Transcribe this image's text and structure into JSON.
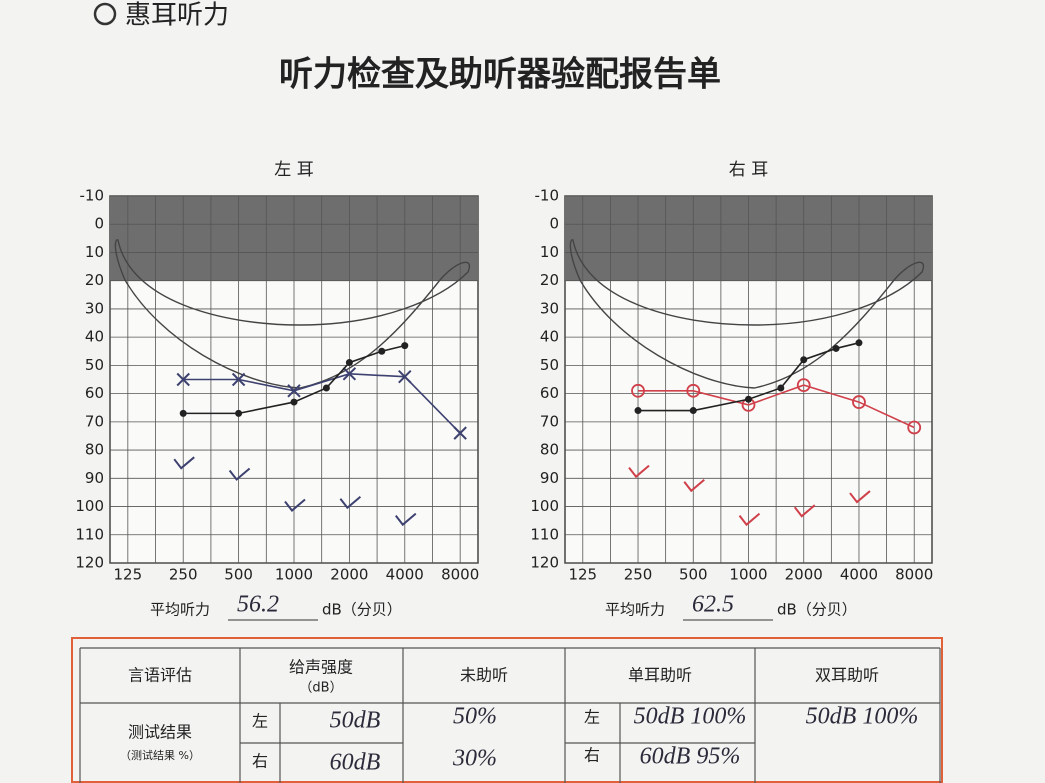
{
  "header": {
    "logo": "惠耳听力",
    "title": "听力检查及助听器验配报告单"
  },
  "chart_data": [
    {
      "type": "line",
      "title": "左 耳",
      "xscale": "log",
      "xlim": [
        100,
        10000
      ],
      "xticks": [
        125,
        250,
        500,
        1000,
        2000,
        4000,
        8000
      ],
      "ylim": [
        -10,
        120
      ],
      "y_inverted": true,
      "yticks": [
        -10,
        0,
        10,
        20,
        30,
        40,
        50,
        60,
        70,
        80,
        90,
        100,
        110,
        120
      ],
      "grid": true,
      "shade": [
        -10,
        20
      ],
      "series": [
        {
          "marker": "x",
          "color": "#3d4170",
          "connected": true,
          "x": [
            250,
            500,
            1000,
            2000,
            4000,
            8000
          ],
          "values": [
            55,
            55,
            59,
            53,
            54,
            74
          ]
        },
        {
          "marker": "v",
          "color": "#3d4170",
          "connected": false,
          "x": [
            250,
            500,
            1000,
            2000,
            4000
          ],
          "values": [
            85,
            89,
            100,
            99,
            105
          ]
        },
        {
          "marker": "dot",
          "color": "#222222",
          "connected": true,
          "x": [
            250,
            500,
            1000,
            1500,
            2000,
            3000,
            4000
          ],
          "values": [
            67,
            67,
            63,
            58,
            49,
            45,
            43
          ]
        }
      ],
      "average": {
        "label": "平均听力",
        "value": 56.2,
        "unit": "dB（分贝）"
      }
    },
    {
      "type": "line",
      "title": "右 耳",
      "xscale": "log",
      "xlim": [
        100,
        10000
      ],
      "xticks": [
        125,
        250,
        500,
        1000,
        2000,
        4000,
        8000
      ],
      "ylim": [
        -10,
        120
      ],
      "y_inverted": true,
      "yticks": [
        -10,
        0,
        10,
        20,
        30,
        40,
        50,
        60,
        70,
        80,
        90,
        100,
        110,
        120
      ],
      "grid": true,
      "shade": [
        -10,
        20
      ],
      "series": [
        {
          "marker": "o",
          "color": "#d0404a",
          "connected": true,
          "x": [
            250,
            500,
            1000,
            2000,
            4000,
            8000
          ],
          "values": [
            59,
            59,
            64,
            57,
            63,
            72
          ]
        },
        {
          "marker": "v",
          "color": "#d0404a",
          "connected": false,
          "x": [
            250,
            500,
            1000,
            2000,
            4000
          ],
          "values": [
            88,
            93,
            105,
            102,
            97
          ]
        },
        {
          "marker": "dot",
          "color": "#222222",
          "connected": true,
          "x": [
            250,
            500,
            1000,
            1500,
            2000,
            3000,
            4000
          ],
          "values": [
            66,
            66,
            62,
            58,
            48,
            44,
            42
          ]
        }
      ],
      "average": {
        "label": "平均听力",
        "value": 62.5,
        "unit": "dB（分贝）"
      }
    }
  ],
  "table": {
    "corner": "言语评估",
    "result_label": "测试结果",
    "result_sub": "（测试结果 %）",
    "intensity": "给声强度",
    "intensity_unit": "（dB）",
    "unaided": "未助听",
    "mono": "单耳助听",
    "binaural": "双耳助听",
    "rows": [
      {
        "side": "左",
        "intensity": "50dB",
        "unaided": "50%",
        "mono_side": "左",
        "mono": "50dB 100%",
        "binaural": "50dB 100%"
      },
      {
        "side": "右",
        "intensity": "60dB",
        "unaided": "30%",
        "mono_side": "右",
        "mono": "60dB 95%"
      }
    ]
  }
}
